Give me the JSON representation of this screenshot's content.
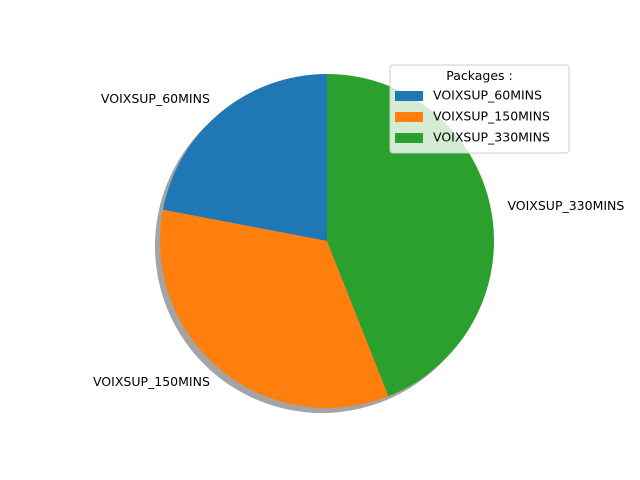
{
  "chart_data": {
    "type": "pie",
    "categories": [
      "VOIXSUP_60MINS",
      "VOIXSUP_150MINS",
      "VOIXSUP_330MINS"
    ],
    "values": [
      22,
      34,
      44
    ],
    "colors": [
      "#1f77b4",
      "#ff7f0e",
      "#2ca02c"
    ],
    "start_angle_deg": 90,
    "direction": "counterclockwise",
    "shadow": true,
    "legend": {
      "title": "Packages :",
      "placement": "upper-right"
    }
  }
}
